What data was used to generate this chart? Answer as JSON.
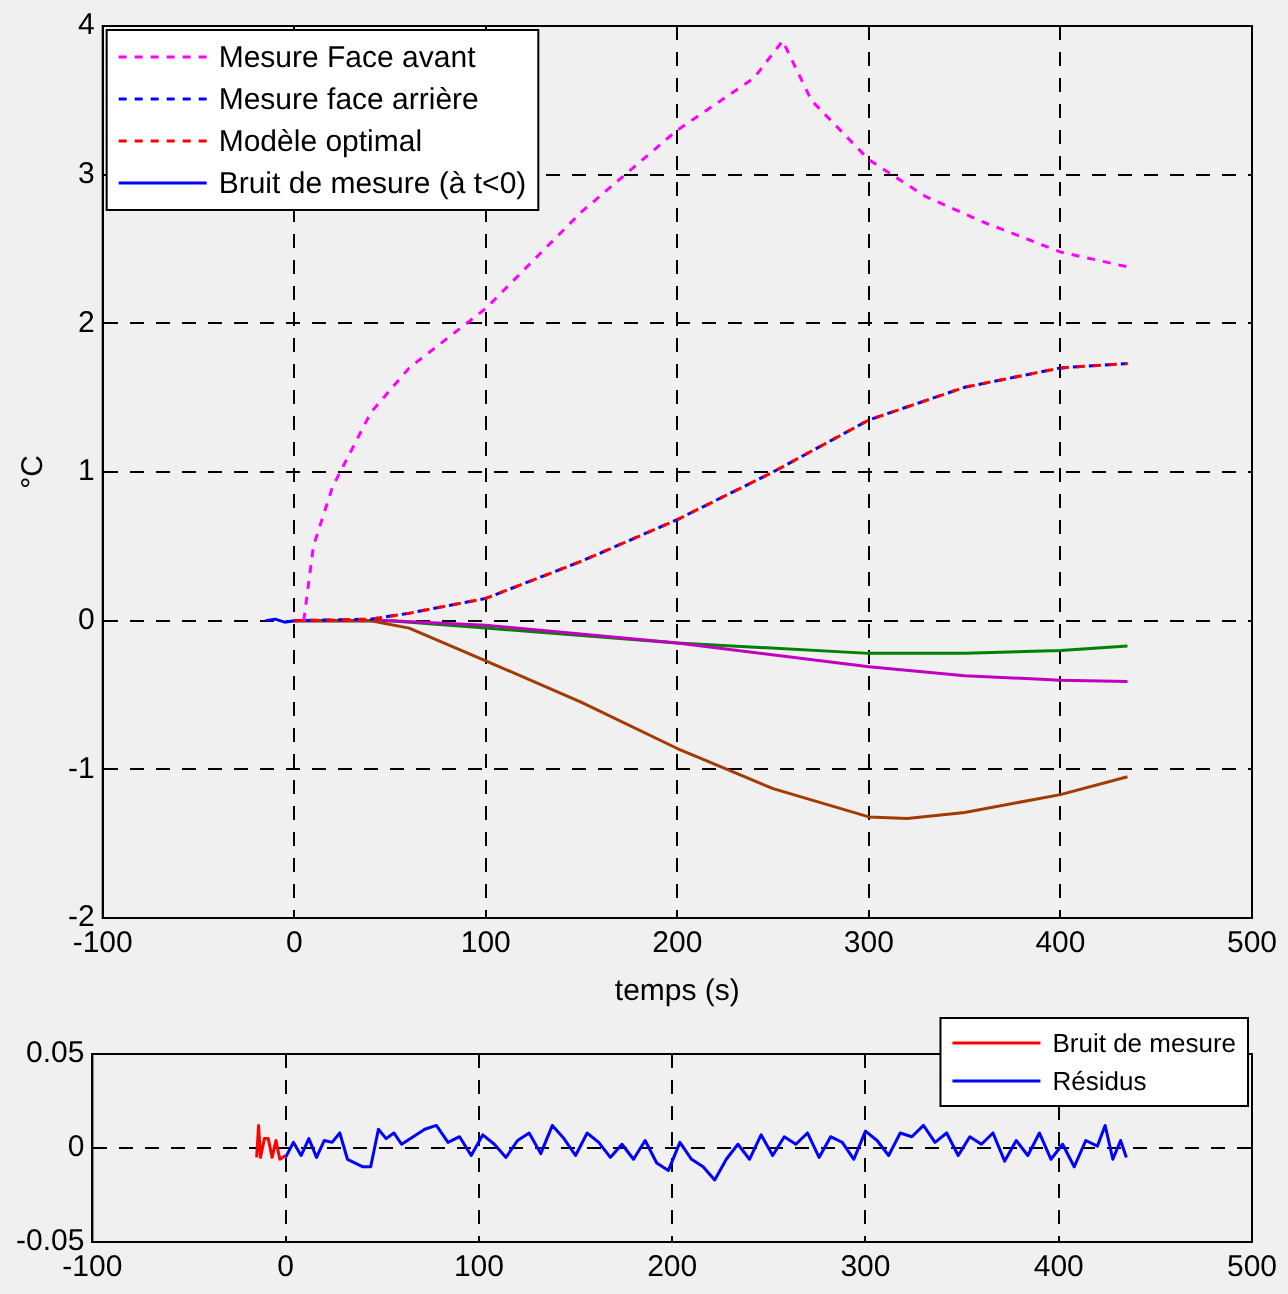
{
  "chart_data": [
    {
      "type": "line",
      "xlabel": "temps (s)",
      "ylabel": "°C",
      "xlim": [
        -100,
        500
      ],
      "xticks": [
        -100,
        0,
        100,
        200,
        300,
        400,
        500
      ],
      "ylim": [
        -2,
        4
      ],
      "yticks": [
        -2,
        -1,
        0,
        1,
        2,
        3,
        4
      ],
      "grid": true,
      "legend": "top left",
      "marker": "none",
      "series": [
        {
          "name": "Mesure Face avant",
          "color": "#ff00ff",
          "line_style": "dashed",
          "x": [
            5,
            10,
            20,
            40,
            60,
            80,
            100,
            150,
            200,
            240,
            255,
            270,
            300,
            330,
            360,
            400,
            435
          ],
          "values": [
            0,
            0.5,
            0.9,
            1.4,
            1.7,
            1.9,
            2.1,
            2.75,
            3.3,
            3.65,
            3.9,
            3.5,
            3.1,
            2.85,
            2.68,
            2.48,
            2.38
          ]
        },
        {
          "name": "Mesure face arrière",
          "color": "#0000ff",
          "line_style": "dashed",
          "x": [
            0,
            40,
            60,
            100,
            150,
            200,
            250,
            300,
            350,
            400,
            435
          ],
          "values": [
            0,
            0.01,
            0.05,
            0.15,
            0.4,
            0.68,
            1.0,
            1.35,
            1.57,
            1.7,
            1.73
          ]
        },
        {
          "name": "Modèle optimal",
          "color": "#ff0000",
          "line_style": "dashed",
          "x": [
            0,
            40,
            60,
            100,
            150,
            200,
            250,
            300,
            350,
            400,
            435
          ],
          "values": [
            0,
            0.01,
            0.05,
            0.15,
            0.4,
            0.68,
            1.0,
            1.35,
            1.57,
            1.7,
            1.73
          ]
        },
        {
          "name": "Bruit de mesure (à t<0)",
          "color": "#0000ff",
          "line_style": "solid",
          "x": [
            -15,
            -10,
            -5,
            0
          ],
          "values": [
            0,
            0.01,
            -0.01,
            0
          ]
        },
        {
          "color": "#008000",
          "line_style": "solid",
          "x": [
            0,
            50,
            100,
            200,
            300,
            350,
            400,
            435
          ],
          "values": [
            0,
            0,
            -0.05,
            -0.15,
            -0.22,
            -0.22,
            -0.2,
            -0.17
          ]
        },
        {
          "color": "#bf00bf",
          "line_style": "solid",
          "x": [
            0,
            50,
            100,
            200,
            300,
            350,
            400,
            435
          ],
          "values": [
            0,
            0,
            -0.03,
            -0.15,
            -0.31,
            -0.37,
            -0.4,
            -0.41
          ]
        },
        {
          "color": "#a33a00",
          "line_style": "solid",
          "x": [
            0,
            40,
            60,
            100,
            150,
            200,
            250,
            300,
            320,
            350,
            400,
            435
          ],
          "values": [
            0,
            0,
            -0.05,
            -0.27,
            -0.55,
            -0.86,
            -1.13,
            -1.32,
            -1.33,
            -1.29,
            -1.17,
            -1.05
          ]
        }
      ]
    },
    {
      "type": "line",
      "xlim": [
        -100,
        500
      ],
      "xticks": [
        -100,
        0,
        100,
        200,
        300,
        400,
        500
      ],
      "ylim": [
        -0.05,
        0.05
      ],
      "yticks": [
        -0.05,
        0,
        0.05
      ],
      "grid": true,
      "legend": "top right",
      "marker": "none",
      "series": [
        {
          "name": "Bruit de mesure",
          "color": "#ff0000",
          "line_style": "solid",
          "x": [
            -15,
            -14,
            -13,
            -11,
            -9,
            -7,
            -5,
            -3,
            0
          ],
          "values": [
            -0.005,
            0.012,
            -0.005,
            0.005,
            0.005,
            -0.005,
            0.004,
            -0.006,
            -0.004
          ]
        },
        {
          "name": "Résidus",
          "color": "#0000ff",
          "line_style": "solid",
          "x": [
            0,
            4,
            8,
            12,
            16,
            20,
            24,
            28,
            32,
            36,
            40,
            44,
            48,
            52,
            56,
            60,
            66,
            72,
            78,
            84,
            90,
            96,
            102,
            108,
            114,
            120,
            126,
            132,
            138,
            144,
            150,
            156,
            162,
            168,
            174,
            180,
            186,
            192,
            198,
            204,
            210,
            216,
            222,
            228,
            234,
            240,
            246,
            252,
            258,
            264,
            270,
            276,
            282,
            288,
            294,
            300,
            306,
            312,
            318,
            324,
            330,
            336,
            342,
            348,
            354,
            360,
            366,
            372,
            378,
            384,
            390,
            396,
            402,
            408,
            414,
            420,
            424,
            428,
            432,
            435
          ],
          "values": [
            -0.005,
            0.003,
            -0.004,
            0.005,
            -0.005,
            0.004,
            0.003,
            0.008,
            -0.006,
            -0.008,
            -0.01,
            -0.01,
            0.01,
            0.005,
            0.008,
            0.002,
            0.006,
            0.01,
            0.012,
            0.003,
            0.006,
            -0.004,
            0.007,
            0.002,
            -0.005,
            0.004,
            0.008,
            -0.003,
            0.012,
            0.005,
            -0.004,
            0.008,
            0.003,
            -0.005,
            0.002,
            -0.006,
            0.004,
            -0.008,
            -0.012,
            0.003,
            -0.006,
            -0.01,
            -0.017,
            -0.006,
            0.002,
            -0.006,
            0.007,
            -0.004,
            0.006,
            0.002,
            0.008,
            -0.005,
            0.006,
            0.003,
            -0.006,
            0.009,
            0.004,
            -0.004,
            0.008,
            0.006,
            0.012,
            0.003,
            0.008,
            -0.004,
            0.006,
            0.002,
            0.008,
            -0.007,
            0.004,
            -0.004,
            0.008,
            -0.006,
            0.002,
            -0.01,
            0.004,
            0.001,
            0.012,
            -0.006,
            0.004,
            -0.005
          ]
        }
      ]
    }
  ]
}
